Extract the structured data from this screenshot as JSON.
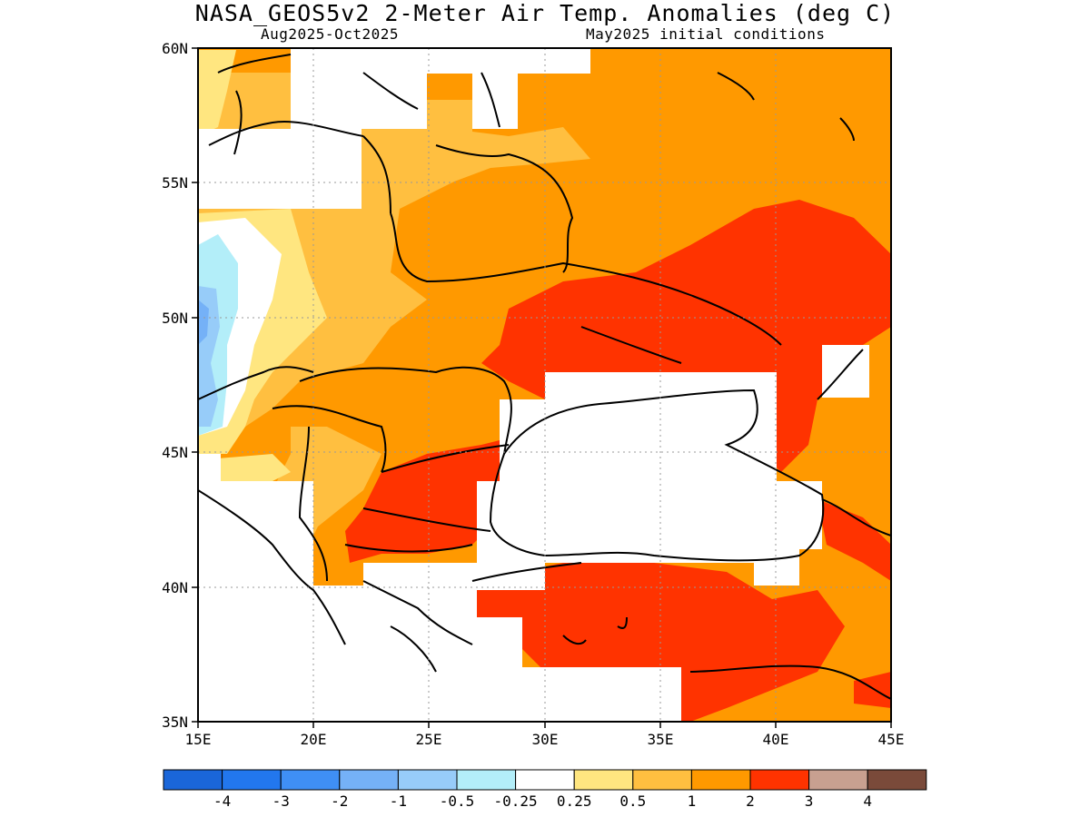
{
  "header": {
    "title": "NASA_GEOS5v2 2-Meter Air Temp. Anomalies (deg C)",
    "period": "Aug2025-Oct2025",
    "initial_conditions": "May2025 initial conditions"
  },
  "map": {
    "lon_ticks": [
      "15E",
      "20E",
      "25E",
      "30E",
      "35E",
      "40E",
      "45E"
    ],
    "lat_ticks": [
      "60N",
      "55N",
      "50N",
      "45N",
      "40N",
      "35N"
    ],
    "lon_range": [
      15,
      45
    ],
    "lat_range": [
      35,
      60
    ],
    "grid": "dotted"
  },
  "colorbar": {
    "labels": [
      "-4",
      "-3",
      "-2",
      "-1",
      "-0.5",
      "-0.25",
      "0.25",
      "0.5",
      "1",
      "2",
      "3",
      "4"
    ],
    "colors": [
      "#1a66d9",
      "#2277ee",
      "#3f8ff5",
      "#75b1f7",
      "#97ccf9",
      "#b3eef9",
      "#ffffff",
      "#ffe680",
      "#ffbf40",
      "#ff9900",
      "#ff3300",
      "#c8a090",
      "#7a4a3a"
    ]
  }
}
